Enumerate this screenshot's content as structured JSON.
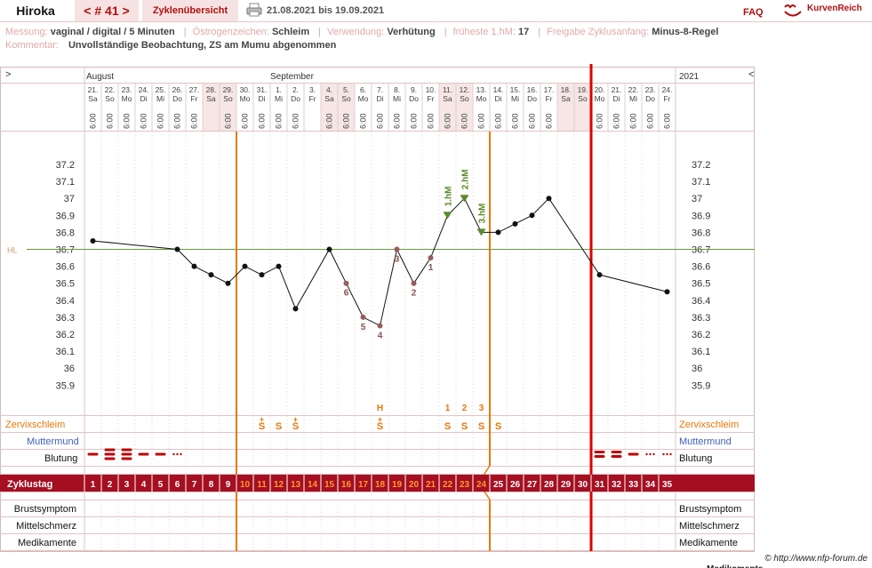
{
  "header": {
    "user": "Hiroka",
    "cycle_tab": "< # 41 >",
    "overview_tab": "Zyklenübersicht",
    "date_range": "21.08.2021 bis 19.09.2021",
    "faq": "FAQ",
    "logo_text": "KurvenReich",
    "print_icon": "printer-icon",
    "logo_icon": "kurvenreich-logo-icon"
  },
  "meta": {
    "messung_label": "Messung:",
    "messung_value": "vaginal / digital / 5 Minuten",
    "oestrogen_label": "Östrogenzeichen:",
    "oestrogen_value": "Schleim",
    "verwendung_label": "Verwendung:",
    "verwendung_value": "Verhütung",
    "fhm_label": "früheste 1.hM:",
    "fhm_value": "17",
    "freigabe_label": "Freigabe Zyklusanfang:",
    "freigabe_value": "Minus-8-Regel",
    "kommentar_label": "Kommentar:",
    "kommentar_value": "Unvollständige Beobachtung, ZS am Mumu abgenommen"
  },
  "grid": {
    "nav_left": ">",
    "nav_right": "<",
    "month1": "August",
    "month2": "September",
    "year": "2021",
    "hl_label": "HL",
    "footer_credit": "© http://www.nfp-forum.de",
    "bottom_cut": "Medikamente"
  },
  "rows": {
    "zervix": "Zervixschleim",
    "muttermund": "Muttermund",
    "blutung": "Blutung",
    "zyklustag": "Zyklustag",
    "brust": "Brustsymptom",
    "mittel": "Mittelschmerz",
    "medi": "Medikamente"
  },
  "colors": {
    "accent": "#a50f21",
    "orange": "#e8780a",
    "green_marker": "#5a8a2a",
    "coverline": "#6a9a3a",
    "weekend": "#f6e6e6",
    "red_line": "#dd0000"
  },
  "chart_data": {
    "type": "line",
    "title": "",
    "ylabel": "",
    "ylim": [
      35.9,
      37.2
    ],
    "yticks": [
      "37.2",
      "37.1",
      "37",
      "36.9",
      "36.8",
      "36.7",
      "36.6",
      "36.5",
      "36.4",
      "36.3",
      "36.2",
      "36.1",
      "36",
      "35.9"
    ],
    "coverline": 36.7,
    "cycle_days": [
      1,
      2,
      3,
      4,
      5,
      6,
      7,
      8,
      9,
      10,
      11,
      12,
      13,
      14,
      15,
      16,
      17,
      18,
      19,
      20,
      21,
      22,
      23,
      24,
      25,
      26,
      27,
      28,
      29,
      30,
      31,
      32,
      33,
      34,
      35
    ],
    "dates": [
      "21.",
      "22.",
      "23.",
      "24.",
      "25.",
      "26.",
      "27.",
      "28.",
      "29.",
      "30.",
      "31.",
      "1.",
      "2.",
      "3.",
      "4.",
      "5.",
      "6.",
      "7.",
      "8.",
      "9.",
      "10.",
      "11.",
      "12.",
      "13.",
      "14.",
      "15.",
      "16.",
      "17.",
      "18.",
      "19.",
      "20.",
      "21.",
      "22.",
      "23.",
      "24."
    ],
    "weekdays": [
      "Sa",
      "So",
      "Mo",
      "Di",
      "Mi",
      "Do",
      "Fr",
      "Sa",
      "So",
      "Mo",
      "Di",
      "Mi",
      "Do",
      "Fr",
      "Sa",
      "So",
      "Mo",
      "Di",
      "Mi",
      "Do",
      "Fr",
      "Sa",
      "So",
      "Mo",
      "Di",
      "Mi",
      "Do",
      "Fr",
      "Sa",
      "So",
      "Mo",
      "Di",
      "Mi",
      "Do",
      "Fr"
    ],
    "times": [
      "6:00",
      "6:00",
      "6:00",
      "6:00",
      "6:00",
      "6:00",
      "6:00",
      "",
      "6:00",
      "6:00",
      "6:00",
      "6:00",
      "6:00",
      "",
      "6:00",
      "6:00",
      "6:00",
      "6:00",
      "6:00",
      "6:00",
      "6:00",
      "6:00",
      "6:00",
      "6:00",
      "6:00",
      "6:00",
      "6:00",
      "6:00",
      "",
      "",
      "6:00",
      "6:00",
      "6:00",
      "6:00",
      "6:00"
    ],
    "series": [
      {
        "points": [
          {
            "day": 1,
            "temp": 36.75
          },
          {
            "day": 6,
            "temp": 36.7
          },
          {
            "day": 7,
            "temp": 36.6
          },
          {
            "day": 8,
            "temp": 36.55
          },
          {
            "day": 9,
            "temp": 36.5
          },
          {
            "day": 10,
            "temp": 36.6
          },
          {
            "day": 11,
            "temp": 36.55
          },
          {
            "day": 12,
            "temp": 36.6
          },
          {
            "day": 13,
            "temp": 36.35
          },
          {
            "day": 15,
            "temp": 36.7
          },
          {
            "day": 16,
            "temp": 36.5,
            "label": "6"
          },
          {
            "day": 17,
            "temp": 36.3,
            "label": "5"
          },
          {
            "day": 18,
            "temp": 36.25,
            "label": "4"
          },
          {
            "day": 19,
            "temp": 36.7,
            "label": "3"
          },
          {
            "day": 20,
            "temp": 36.5,
            "label": "2"
          },
          {
            "day": 21,
            "temp": 36.65,
            "label": "1"
          },
          {
            "day": 22,
            "temp": 36.9,
            "label": "1.hM"
          },
          {
            "day": 23,
            "temp": 37.0,
            "label": "2.hM"
          },
          {
            "day": 24,
            "temp": 36.8,
            "label": "3.hM"
          },
          {
            "day": 25,
            "temp": 36.8
          },
          {
            "day": 26,
            "temp": 36.85
          },
          {
            "day": 27,
            "temp": 36.9
          },
          {
            "day": 28,
            "temp": 37.0
          },
          {
            "day": 31,
            "temp": 36.55
          },
          {
            "day": 35,
            "temp": 36.45
          }
        ]
      }
    ],
    "mucus": [
      {
        "day": 11,
        "symbol": "S",
        "mod": "+"
      },
      {
        "day": 12,
        "symbol": "S"
      },
      {
        "day": 13,
        "symbol": "S",
        "mod": "+"
      },
      {
        "day": 18,
        "symbol": "S",
        "mod": "+"
      },
      {
        "day": 22,
        "symbol": "S"
      },
      {
        "day": 23,
        "symbol": "S"
      },
      {
        "day": 24,
        "symbol": "S"
      },
      {
        "day": 25,
        "symbol": "S"
      }
    ],
    "mucus_top_labels": [
      {
        "day": 18,
        "text": "H"
      },
      {
        "day": 22,
        "text": "1"
      },
      {
        "day": 23,
        "text": "2"
      },
      {
        "day": 24,
        "text": "3"
      }
    ],
    "bleeding": [
      {
        "day": 1,
        "level": "light"
      },
      {
        "day": 2,
        "level": "heavy"
      },
      {
        "day": 3,
        "level": "heavy"
      },
      {
        "day": 4,
        "level": "light"
      },
      {
        "day": 5,
        "level": "light"
      },
      {
        "day": 6,
        "level": "spotting"
      },
      {
        "day": 31,
        "level": "medium"
      },
      {
        "day": 32,
        "level": "medium"
      },
      {
        "day": 33,
        "level": "light"
      },
      {
        "day": 34,
        "level": "spotting"
      },
      {
        "day": 35,
        "level": "spotting"
      }
    ],
    "weekend_days": [
      8,
      9,
      15,
      16,
      22,
      23,
      29,
      30
    ],
    "orange_days_from": 10,
    "orange_days_to": 24,
    "mucus_end_day": 24,
    "temp_rise_day": 22,
    "cycle_end_day": 30
  }
}
